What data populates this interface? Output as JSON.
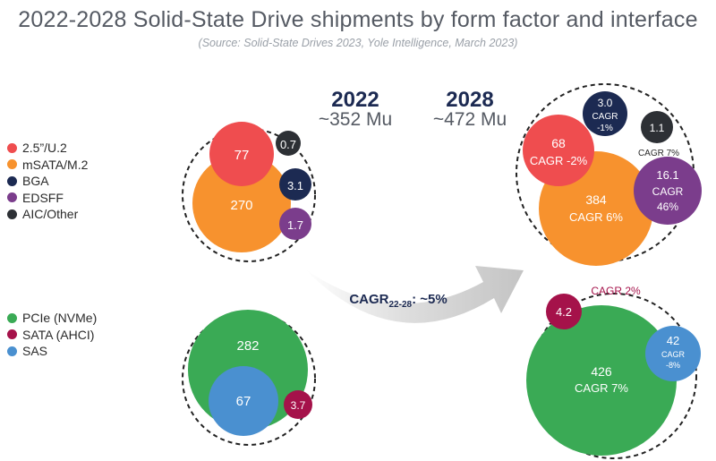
{
  "title": "2022-2028 Solid-State Drive shipments by form factor and interface",
  "source": "(Source: Solid-State Drives 2023, Yole Intelligence, March 2023)",
  "years": {
    "y2022": {
      "label": "2022",
      "total": "~352 Mu"
    },
    "y2028": {
      "label": "2028",
      "total": "~472 Mu"
    }
  },
  "arrow": {
    "cagr_prefix": "CAGR",
    "cagr_sub": "22-28",
    "cagr_value": ": ~5%"
  },
  "legend_form_factor": [
    {
      "label": "2.5”/U.2",
      "color": "#ef4d4f"
    },
    {
      "label": "mSATA/M.2",
      "color": "#f7922e"
    },
    {
      "label": "BGA",
      "color": "#1c2a52"
    },
    {
      "label": "EDSFF",
      "color": "#7b3d8c"
    },
    {
      "label": "AIC/Other",
      "color": "#2d3035"
    }
  ],
  "legend_interface": [
    {
      "label": "PCIe (NVMe)",
      "color": "#3aaa55"
    },
    {
      "label": "SATA (AHCI)",
      "color": "#a5124a"
    },
    {
      "label": "SAS",
      "color": "#4a90d0"
    }
  ],
  "chart_data": [
    {
      "type": "bubble",
      "group": "form factor",
      "year": "2022",
      "unit": "Mu",
      "series": [
        {
          "name": "2.5”/U.2",
          "value": 77,
          "label": "77"
        },
        {
          "name": "mSATA/M.2",
          "value": 270,
          "label": "270"
        },
        {
          "name": "BGA",
          "value": 3.1,
          "label": "3.1"
        },
        {
          "name": "EDSFF",
          "value": 1.7,
          "label": "1.7"
        },
        {
          "name": "AIC/Other",
          "value": 0.7,
          "label": "0.7"
        }
      ]
    },
    {
      "type": "bubble",
      "group": "form factor",
      "year": "2028",
      "unit": "Mu",
      "series": [
        {
          "name": "2.5”/U.2",
          "value": 68,
          "label": "68",
          "cagr": "CAGR -2%"
        },
        {
          "name": "mSATA/M.2",
          "value": 384,
          "label": "384",
          "cagr": "CAGR 6%"
        },
        {
          "name": "BGA",
          "value": 3.0,
          "label": "3.0",
          "cagr": "CAGR -1%"
        },
        {
          "name": "EDSFF",
          "value": 16.1,
          "label": "16.1",
          "cagr": "CAGR 46%"
        },
        {
          "name": "AIC/Other",
          "value": 1.1,
          "label": "1.1",
          "cagr": "CAGR 7%"
        }
      ]
    },
    {
      "type": "bubble",
      "group": "interface",
      "year": "2022",
      "unit": "Mu",
      "series": [
        {
          "name": "PCIe (NVMe)",
          "value": 282,
          "label": "282"
        },
        {
          "name": "SAS",
          "value": 67,
          "label": "67"
        },
        {
          "name": "SATA (AHCI)",
          "value": 3.7,
          "label": "3.7"
        }
      ]
    },
    {
      "type": "bubble",
      "group": "interface",
      "year": "2028",
      "unit": "Mu",
      "series": [
        {
          "name": "PCIe (NVMe)",
          "value": 426,
          "label": "426",
          "cagr": "CAGR 7%"
        },
        {
          "name": "SAS",
          "value": 42,
          "label": "42",
          "cagr": "CAGR -8%"
        },
        {
          "name": "SATA (AHCI)",
          "value": 4.2,
          "label": "4.2",
          "cagr": "CAGR 2%"
        }
      ]
    }
  ]
}
